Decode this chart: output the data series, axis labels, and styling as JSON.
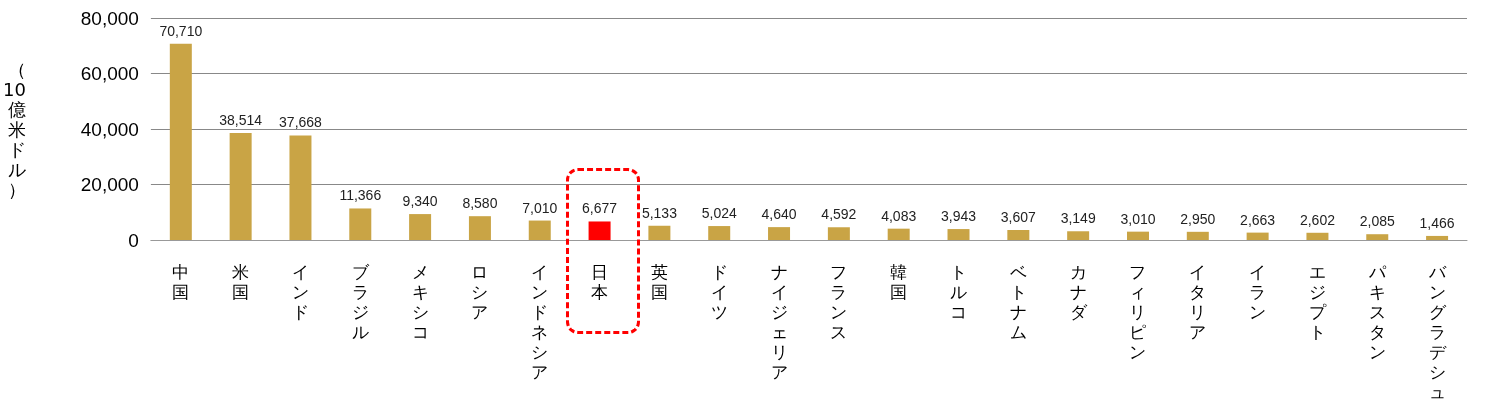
{
  "chart_data": {
    "type": "bar",
    "ylabel": "（10億米ドル）",
    "categories": [
      "中国",
      "米国",
      "インド",
      "ブラジル",
      "メキシコ",
      "ロシア",
      "インドネシア",
      "日本",
      "英国",
      "ドイツ",
      "ナイジェリア",
      "フランス",
      "韓国",
      "トルコ",
      "ベトナム",
      "カナダ",
      "フィリピン",
      "イタリア",
      "イラン",
      "エジプト",
      "パキスタン",
      "バングラデシュ"
    ],
    "values": [
      70710,
      38514,
      37668,
      11366,
      9340,
      8580,
      7010,
      6677,
      5133,
      5024,
      4640,
      4592,
      4083,
      3943,
      3607,
      3149,
      3010,
      2950,
      2663,
      2602,
      2085,
      1466
    ],
    "value_labels": [
      "70,710",
      "38,514",
      "37,668",
      "11,366",
      "9,340",
      "8,580",
      "7,010",
      "6,677",
      "5,133",
      "5,024",
      "4,640",
      "4,592",
      "4,083",
      "3,943",
      "3,607",
      "3,149",
      "3,010",
      "2,950",
      "2,663",
      "2,602",
      "2,085",
      "1,466"
    ],
    "colors": [
      "#c9a445",
      "#c9a445",
      "#c9a445",
      "#c9a445",
      "#c9a445",
      "#c9a445",
      "#c9a445",
      "#ff0000",
      "#c9a445",
      "#c9a445",
      "#c9a445",
      "#c9a445",
      "#c9a445",
      "#c9a445",
      "#c9a445",
      "#c9a445",
      "#c9a445",
      "#c9a445",
      "#c9a445",
      "#c9a445",
      "#c9a445",
      "#c9a445"
    ],
    "ylim": [
      0,
      80000
    ],
    "yticks": [
      0,
      {
        "value": 20000,
        "label": "20,000"
      },
      {
        "value": 40000,
        "label": "40,000"
      },
      {
        "value": 60000,
        "label": "60,000"
      },
      {
        "value": 80000,
        "label": "80,000"
      }
    ],
    "grid": "y"
  }
}
